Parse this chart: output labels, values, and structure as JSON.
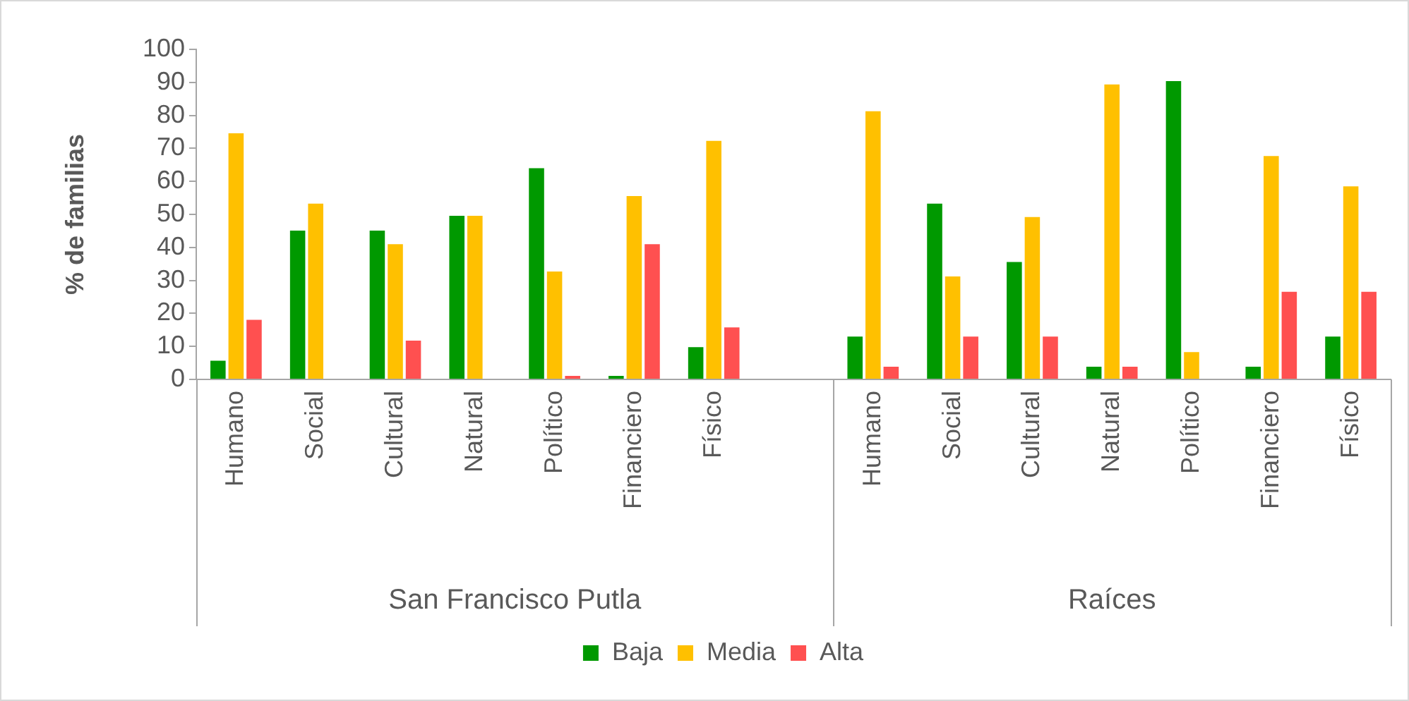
{
  "chart_data": {
    "type": "bar",
    "ylabel": "% de familias",
    "categories": [
      "Humano",
      "Social",
      "Cultural",
      "Natural",
      "Político",
      "Financiero",
      "Físico",
      null,
      "Humano",
      "Social",
      "Cultural",
      "Natural",
      "Político",
      "Financiero",
      "Físico"
    ],
    "series": [
      {
        "name": "Baja",
        "color": "#009900",
        "values": [
          6.1,
          45.5,
          45.5,
          50,
          64.4,
          1.5,
          10.2,
          null,
          13.4,
          53.7,
          36,
          4.3,
          90.8,
          4.3,
          13.4
        ]
      },
      {
        "name": "Media",
        "color": "#ffc000",
        "values": [
          75,
          53.7,
          41.4,
          50,
          33.1,
          56,
          72.7,
          null,
          81.7,
          31.6,
          49.6,
          89.8,
          8.7,
          68.1,
          58.9
        ]
      },
      {
        "name": "Alta",
        "color": "#ff5050",
        "values": [
          18.5,
          0,
          12.2,
          0,
          1.5,
          41.4,
          16.2,
          null,
          4.3,
          13.4,
          13.4,
          4.3,
          0,
          27,
          27
        ]
      }
    ],
    "ylim": [
      0,
      100
    ],
    "yticks": [
      0,
      10,
      20,
      30,
      40,
      50,
      60,
      70,
      80,
      90,
      100
    ],
    "grid": false,
    "legend": "bottom",
    "annotations": [
      "San Francisco Putla",
      "Raíces"
    ]
  }
}
